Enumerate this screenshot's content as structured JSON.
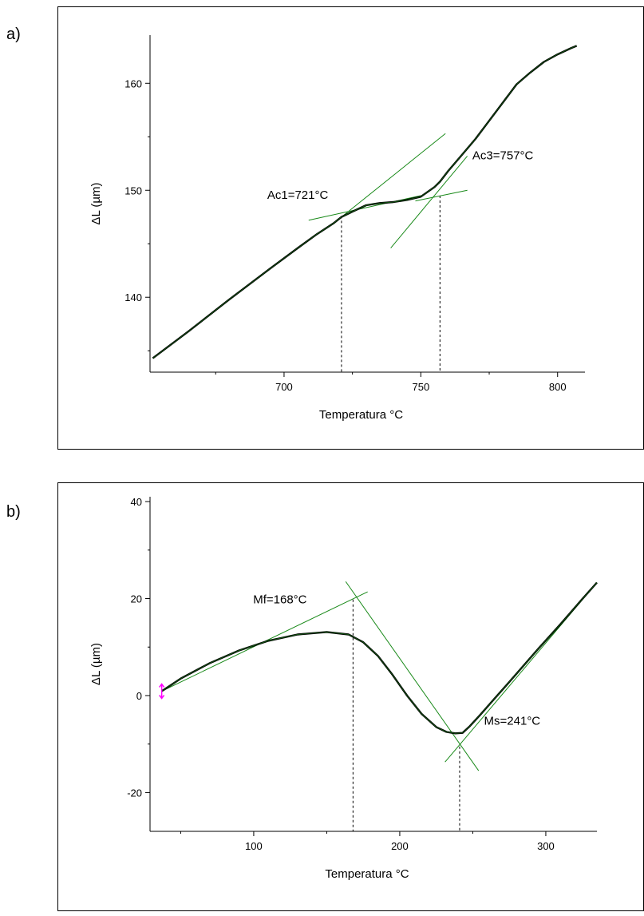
{
  "chart_data": [
    {
      "panel": "a)",
      "type": "line",
      "xlabel": "Temperatura °C",
      "ylabel": "ΔL (µm)",
      "xlim": [
        651,
        810
      ],
      "ylim": [
        133,
        164.5
      ],
      "xticks": [
        700,
        750,
        800
      ],
      "yticks": [
        140,
        150,
        160
      ],
      "colors": {
        "curve": "#000000",
        "tangent": "#1a8a1a",
        "guide": "#000000"
      },
      "series": [
        {
          "x": [
            652,
            665,
            680,
            695,
            705,
            712,
            718,
            721,
            725,
            730,
            735,
            740,
            745,
            750,
            755,
            757,
            760,
            765,
            770,
            775,
            780,
            785,
            790,
            795,
            800,
            805,
            807
          ],
          "y": [
            134.3,
            136.8,
            139.8,
            142.7,
            144.6,
            145.9,
            146.9,
            147.5,
            148.0,
            148.6,
            148.8,
            148.9,
            149.1,
            149.4,
            150.3,
            150.8,
            151.8,
            153.3,
            154.8,
            156.5,
            158.2,
            159.9,
            161.0,
            162.0,
            162.7,
            163.3,
            163.5
          ]
        }
      ],
      "tangents": [
        {
          "x": [
            709,
            750
          ],
          "y": [
            147.2,
            149.5
          ]
        },
        {
          "x": [
            721,
            759
          ],
          "y": [
            147.5,
            155.3
          ]
        },
        {
          "x": [
            739,
            767
          ],
          "y": [
            144.6,
            153.2
          ]
        },
        {
          "x": [
            748,
            767
          ],
          "y": [
            149.0,
            150.0
          ]
        }
      ],
      "guides": [
        {
          "x": 721,
          "y": 147.6
        },
        {
          "x": 757,
          "y": 149.5
        }
      ],
      "annotations": [
        {
          "text": "Ac1=721°C",
          "x": 705,
          "y": 149.2
        },
        {
          "text": "Ac3=757°C",
          "x": 780,
          "y": 152.9
        }
      ]
    },
    {
      "panel": "b)",
      "type": "line",
      "xlabel": "Temperatura °C",
      "ylabel": "ΔL (µm)",
      "xlim": [
        29,
        335
      ],
      "ylim": [
        -28,
        41
      ],
      "xticks": [
        100,
        200,
        300
      ],
      "yticks": [
        -20,
        0,
        20,
        40
      ],
      "colors": {
        "curve": "#000000",
        "tangent": "#1a8a1a",
        "guide": "#000000",
        "marker": "#ff00ff"
      },
      "series": [
        {
          "x": [
            37,
            50,
            70,
            90,
            110,
            130,
            150,
            165,
            175,
            185,
            195,
            205,
            215,
            225,
            232,
            238,
            243,
            248,
            255,
            265,
            280,
            295,
            310,
            325,
            335
          ],
          "y": [
            0.9,
            3.5,
            6.7,
            9.3,
            11.3,
            12.6,
            13.1,
            12.6,
            11.0,
            8.2,
            4.3,
            0.0,
            -3.8,
            -6.5,
            -7.5,
            -7.8,
            -7.7,
            -6.3,
            -4.0,
            -0.6,
            4.5,
            9.7,
            14.7,
            19.9,
            23.3
          ]
        }
      ],
      "tangents": [
        {
          "x": [
            37,
            178
          ],
          "y": [
            0.9,
            21.4
          ]
        },
        {
          "x": [
            163,
            254
          ],
          "y": [
            23.5,
            -15.5
          ]
        },
        {
          "x": [
            231,
            335
          ],
          "y": [
            -13.7,
            23.3
          ]
        }
      ],
      "guides": [
        {
          "x": 168,
          "y": 19.8
        },
        {
          "x": 241,
          "y": -10.5
        }
      ],
      "annotations": [
        {
          "text": "Mf=168°C",
          "x": 118,
          "y": 19.0
        },
        {
          "text": "Ms=241°C",
          "x": 277,
          "y": -6.0
        }
      ]
    }
  ]
}
